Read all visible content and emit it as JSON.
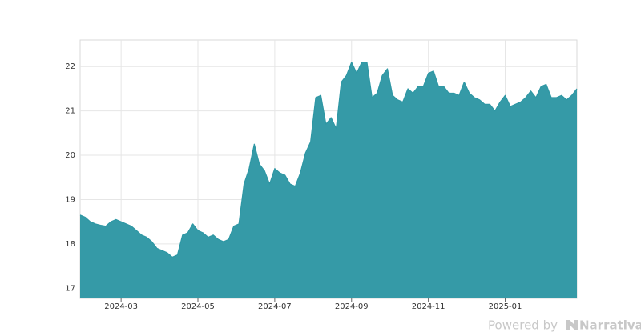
{
  "chart_data": {
    "type": "area",
    "categories": [
      null,
      null,
      null,
      null,
      null,
      null,
      null,
      null,
      "2024-03",
      null,
      null,
      null,
      null,
      null,
      null,
      null,
      null,
      null,
      null,
      null,
      null,
      null,
      null,
      "2024-05",
      null,
      null,
      null,
      null,
      null,
      null,
      null,
      null,
      null,
      null,
      null,
      null,
      null,
      null,
      "2024-07",
      null,
      null,
      null,
      null,
      null,
      null,
      null,
      null,
      null,
      null,
      null,
      null,
      null,
      null,
      "2024-09",
      null,
      null,
      null,
      null,
      null,
      null,
      null,
      null,
      null,
      null,
      null,
      null,
      null,
      null,
      "2024-11",
      null,
      null,
      null,
      null,
      null,
      null,
      null,
      null,
      null,
      null,
      null,
      null,
      null,
      null,
      "2025-01",
      null,
      null,
      null,
      null,
      null,
      null,
      null,
      null,
      null,
      null,
      null,
      null,
      null,
      null
    ],
    "values": [
      18.65,
      18.6,
      18.5,
      18.45,
      18.42,
      18.4,
      18.5,
      18.55,
      18.5,
      18.45,
      18.4,
      18.3,
      18.2,
      18.15,
      18.05,
      17.9,
      17.85,
      17.8,
      17.7,
      17.75,
      18.2,
      18.25,
      18.45,
      18.3,
      18.25,
      18.15,
      18.2,
      18.1,
      18.05,
      18.1,
      18.4,
      18.45,
      19.35,
      19.7,
      20.25,
      19.8,
      19.65,
      19.35,
      19.7,
      19.6,
      19.55,
      19.35,
      19.3,
      19.6,
      20.05,
      20.3,
      21.3,
      21.35,
      20.7,
      20.85,
      20.6,
      21.65,
      21.8,
      22.1,
      21.85,
      22.1,
      22.1,
      21.3,
      21.4,
      21.8,
      21.95,
      21.35,
      21.25,
      21.2,
      21.5,
      21.4,
      21.55,
      21.55,
      21.85,
      21.9,
      21.55,
      21.55,
      21.4,
      21.4,
      21.35,
      21.65,
      21.4,
      21.3,
      21.25,
      21.15,
      21.15,
      21.0,
      21.2,
      21.35,
      21.1,
      21.15,
      21.2,
      21.3,
      21.45,
      21.3,
      21.55,
      21.6,
      21.3,
      21.3,
      21.35,
      21.25,
      21.35,
      21.5
    ],
    "color": "#2e97a4",
    "ylim": [
      16.77,
      22.6
    ],
    "yticks": [
      17,
      18,
      19,
      20,
      21,
      22
    ],
    "grid": true
  },
  "footer": {
    "prefix": "Powered by",
    "brand": "Narrativa"
  }
}
